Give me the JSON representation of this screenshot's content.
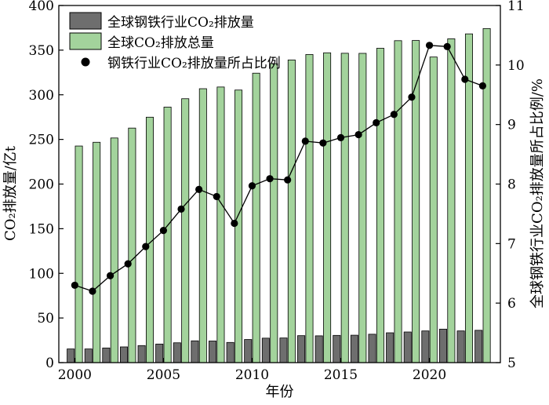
{
  "chart_data": {
    "type": "bar",
    "x": [
      2000,
      2001,
      2002,
      2003,
      2004,
      2005,
      2006,
      2007,
      2008,
      2009,
      2010,
      2011,
      2012,
      2013,
      2014,
      2015,
      2016,
      2017,
      2018,
      2019,
      2020,
      2021,
      2022,
      2023
    ],
    "series": [
      {
        "name": "全球钢铁行业CO₂排放量",
        "kind": "bar",
        "axis": "left",
        "color": "#6e6e6e",
        "values": [
          15.3,
          15.3,
          16.4,
          17.6,
          19.1,
          20.8,
          22.2,
          24.4,
          24.2,
          22.6,
          25.9,
          27.4,
          27.6,
          30.2,
          30.0,
          30.5,
          30.7,
          31.8,
          33.4,
          34.3,
          35.5,
          37.5,
          35.5,
          36.2
        ]
      },
      {
        "name": "全球CO₂排放总量",
        "kind": "bar",
        "axis": "left",
        "color": "#a3d39c",
        "values": [
          242.6,
          246.8,
          251.6,
          262.7,
          274.9,
          286.2,
          295.6,
          306.8,
          308.7,
          305.3,
          324.2,
          334.9,
          339.0,
          345.1,
          347.0,
          346.5,
          346.4,
          352.1,
          360.6,
          360.8,
          342.3,
          362.7,
          368.2,
          374.2
        ]
      },
      {
        "name": "钢铁行业CO₂排放量所占比例",
        "kind": "line",
        "axis": "right",
        "color": "#000000",
        "values": [
          6.3,
          6.2,
          6.46,
          6.66,
          6.95,
          7.22,
          7.58,
          7.91,
          7.79,
          7.34,
          7.97,
          8.09,
          8.07,
          8.72,
          8.69,
          8.78,
          8.83,
          9.03,
          9.17,
          9.46,
          10.33,
          10.31,
          9.76,
          9.65
        ]
      }
    ],
    "xlabel": "年份",
    "ylabel": "CO₂排放量/亿t",
    "ylabel_right": "全球钢铁行业CO₂排放量所占比例/%",
    "ylim": [
      0,
      400
    ],
    "ylim_right": [
      5,
      11
    ],
    "xticks": [
      "2000",
      "2005",
      "2010",
      "2015",
      "2020"
    ],
    "yticks": [
      "0",
      "50",
      "100",
      "150",
      "200",
      "250",
      "300",
      "350",
      "400"
    ],
    "yticks_right": [
      "5",
      "6",
      "7",
      "8",
      "9",
      "10",
      "11"
    ],
    "legend_position": "top-left",
    "grid": false
  }
}
